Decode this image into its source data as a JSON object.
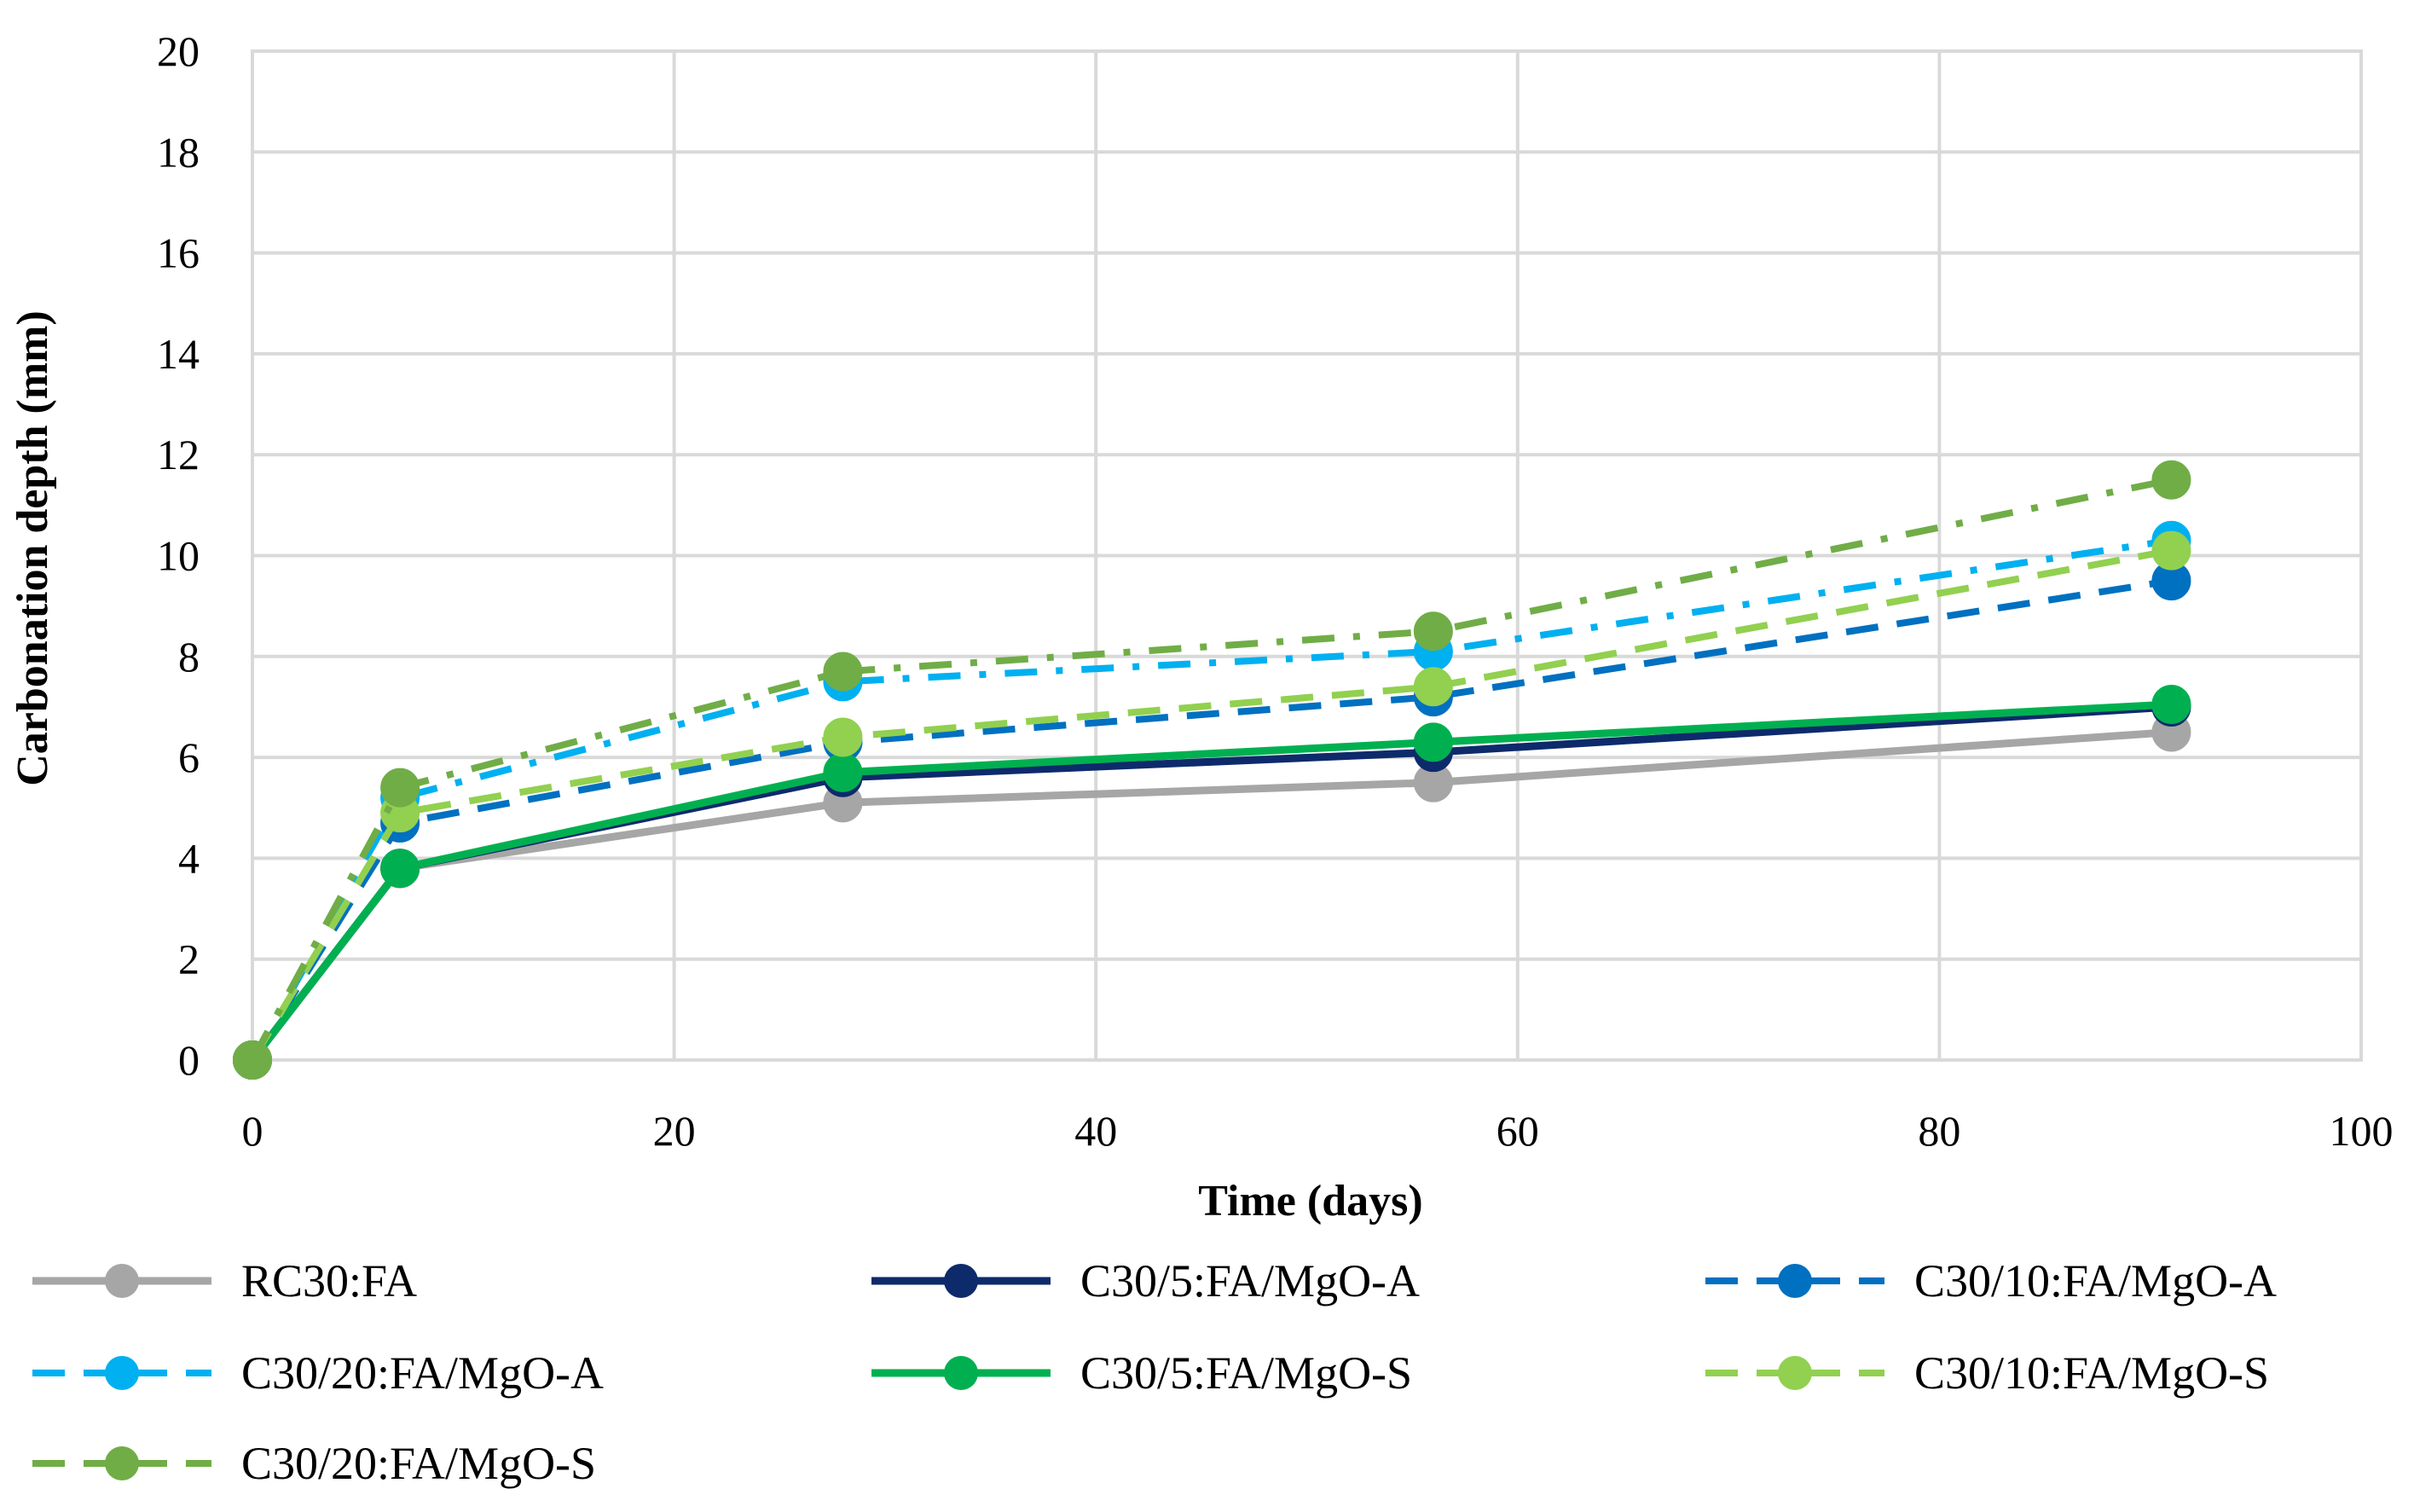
{
  "chart_data": {
    "type": "line",
    "title": "",
    "xlabel": "Time (days)",
    "ylabel": "Carbonation depth (mm)",
    "xlim": [
      0,
      100
    ],
    "ylim": [
      0,
      20
    ],
    "xticks": [
      0,
      20,
      40,
      60,
      80,
      100
    ],
    "yticks": [
      0,
      2,
      4,
      6,
      8,
      10,
      12,
      14,
      16,
      18,
      20
    ],
    "grid": true,
    "legend_position": "bottom",
    "x": [
      0,
      7,
      28,
      56,
      91
    ],
    "series": [
      {
        "name": "RC30:FA",
        "values": [
          0,
          3.8,
          5.1,
          5.5,
          6.5
        ],
        "color": "#a6a6a6",
        "dash": "solid"
      },
      {
        "name": "C30/5:FA/MgO-A",
        "values": [
          0,
          3.8,
          5.6,
          6.1,
          7.0
        ],
        "color": "#0d2a6b",
        "dash": "solid"
      },
      {
        "name": "C30/10:FA/MgO-A",
        "values": [
          0,
          4.7,
          6.3,
          7.2,
          9.5
        ],
        "color": "#0070c0",
        "dash": "dash"
      },
      {
        "name": "C30/20:FA/MgO-A",
        "values": [
          0,
          5.2,
          7.5,
          8.1,
          10.3
        ],
        "color": "#00b0f0",
        "dash": "dashdot"
      },
      {
        "name": "C30/5:FA/MgO-S",
        "values": [
          0,
          3.8,
          5.7,
          6.3,
          7.05
        ],
        "color": "#00b050",
        "dash": "solid"
      },
      {
        "name": "C30/10:FA/MgO-S",
        "values": [
          0,
          4.9,
          6.4,
          7.4,
          10.1
        ],
        "color": "#92d050",
        "dash": "dash"
      },
      {
        "name": "C30/20:FA/MgO-S",
        "values": [
          0,
          5.4,
          7.7,
          8.5,
          11.5
        ],
        "color": "#70ad47",
        "dash": "dashdot"
      }
    ]
  }
}
